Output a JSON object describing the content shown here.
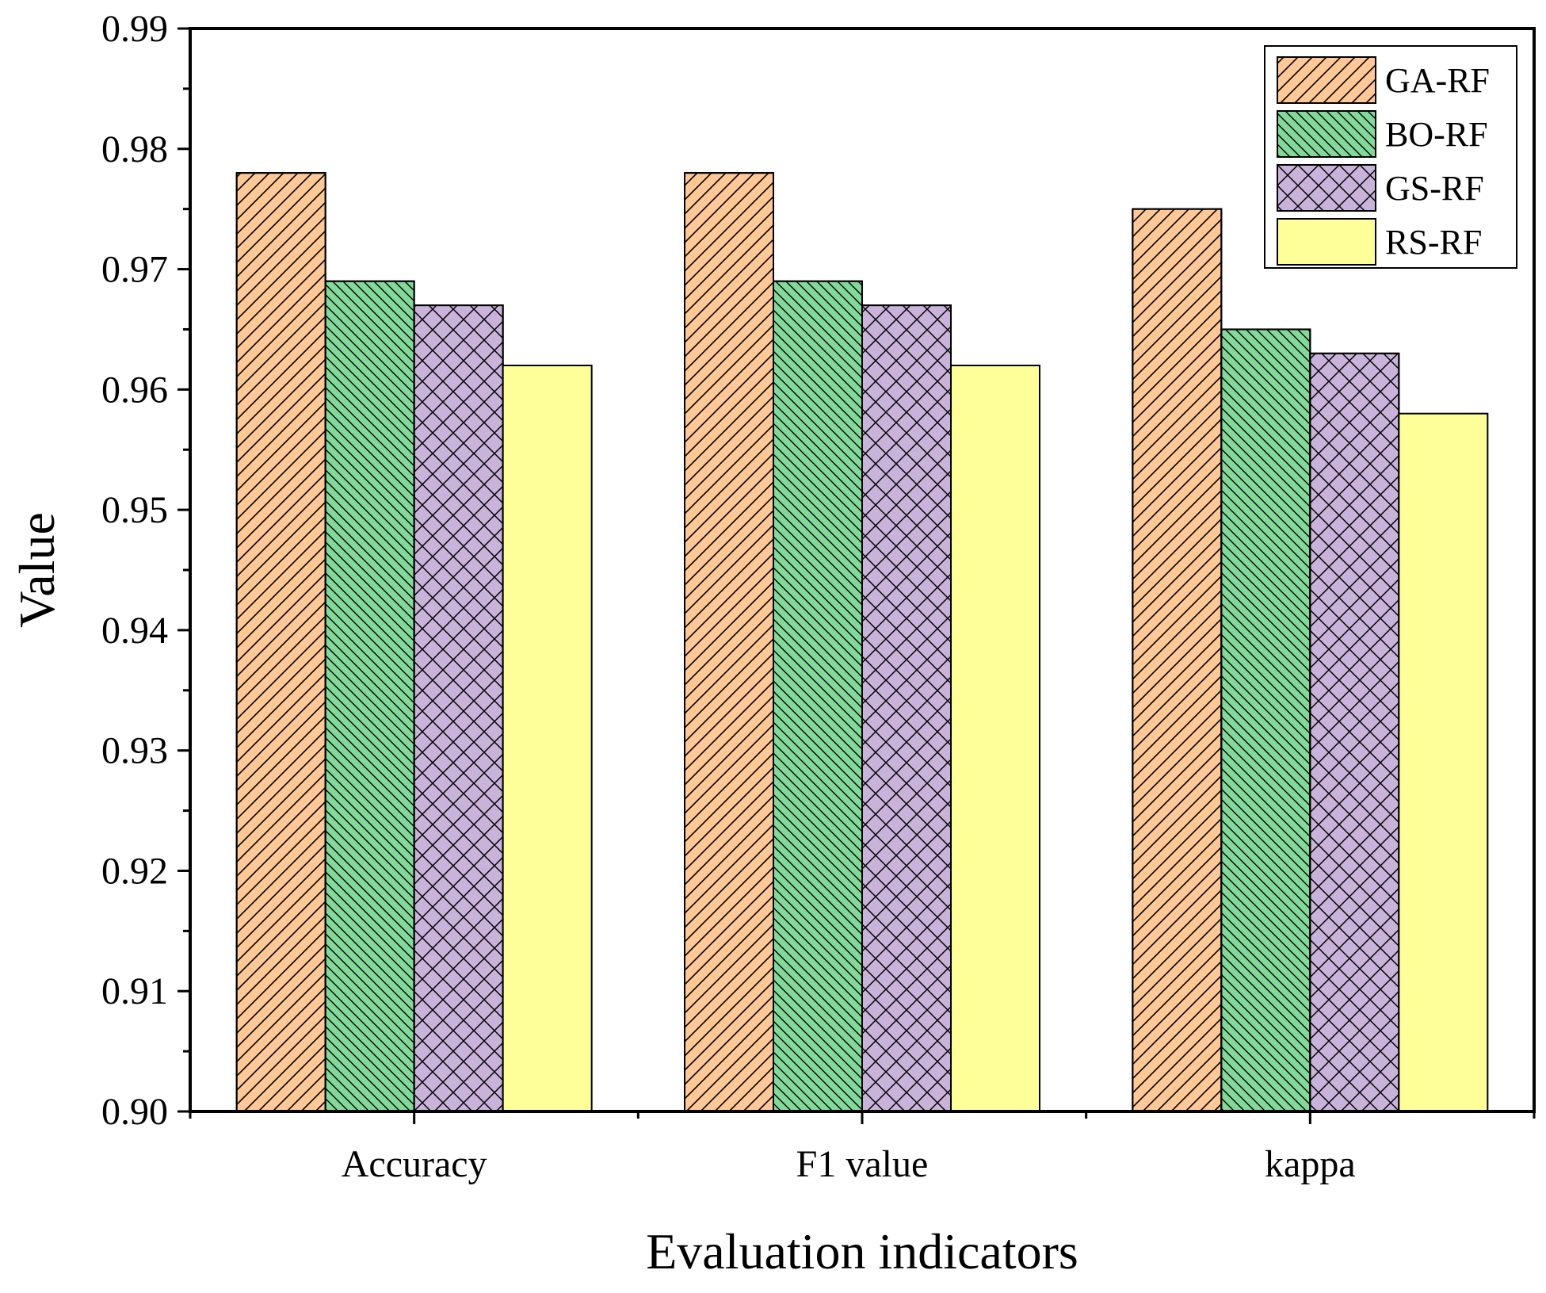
{
  "chart_data": {
    "type": "bar",
    "title": "",
    "xlabel": "Evaluation indicators",
    "ylabel": "Value",
    "ylim": [
      0.9,
      0.99
    ],
    "yticks": [
      "0.90",
      "0.91",
      "0.92",
      "0.93",
      "0.94",
      "0.95",
      "0.96",
      "0.97",
      "0.98",
      "0.99"
    ],
    "categories": [
      "Accuracy",
      "F1 value",
      "kappa"
    ],
    "series": [
      {
        "name": "GA-RF",
        "values": [
          0.978,
          0.978,
          0.975
        ],
        "color": "#FFC896",
        "pattern": "diag-forward"
      },
      {
        "name": "BO-RF",
        "values": [
          0.969,
          0.969,
          0.965
        ],
        "color": "#82D99A",
        "pattern": "diag-back"
      },
      {
        "name": "GS-RF",
        "values": [
          0.967,
          0.967,
          0.963
        ],
        "color": "#C9B3DB",
        "pattern": "crosshatch"
      },
      {
        "name": "RS-RF",
        "values": [
          0.962,
          0.962,
          0.958
        ],
        "color": "#FFFF99",
        "pattern": "none"
      }
    ],
    "legend": {
      "position": "top-right"
    },
    "grid": false
  }
}
